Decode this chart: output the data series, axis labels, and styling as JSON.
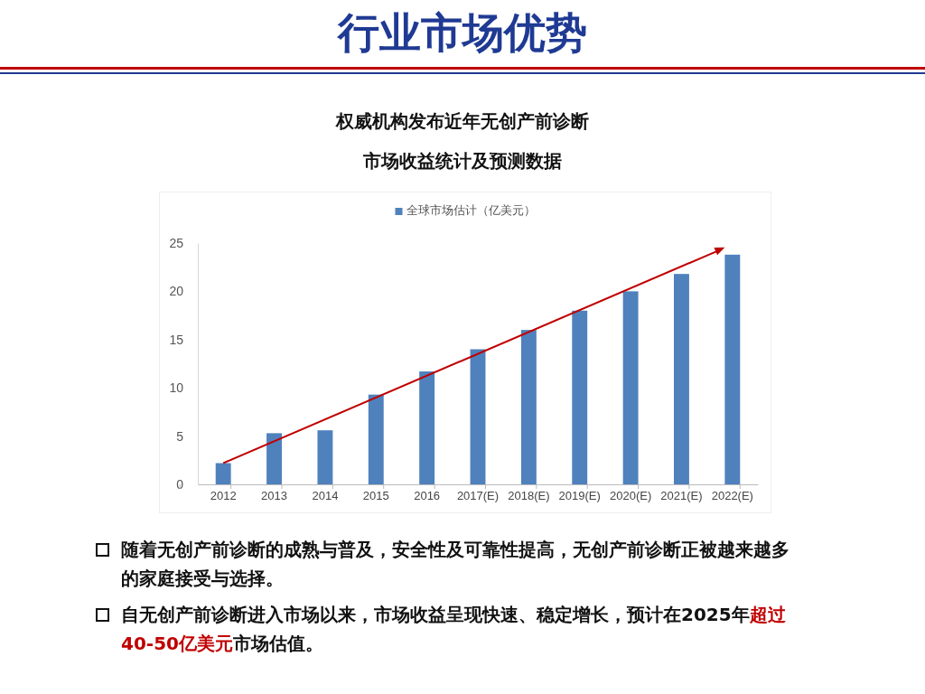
{
  "chart_data": {
    "type": "bar",
    "title": "行业市场优势",
    "subtitle": "权威机构发布近年无创产前诊断市场收益统计及预测数据",
    "categories": [
      "2012",
      "2013",
      "2014",
      "2015",
      "2016",
      "2017(E)",
      "2018(E)",
      "2019(E)",
      "2020(E)",
      "2021(E)",
      "2022(E)"
    ],
    "series": [
      {
        "name": "全球市场估计（亿美元）",
        "color": "#4f81bd",
        "values": [
          2.2,
          5.3,
          5.6,
          9.3,
          11.7,
          14,
          16,
          18,
          20,
          21.8,
          23.8
        ]
      }
    ],
    "ylim": [
      0,
      25
    ],
    "yticks": [
      0,
      5,
      10,
      15,
      20,
      25
    ],
    "grid": false,
    "legend": "top",
    "annotations": [
      "随着无创产前诊断的成熟与普及，安全性及可靠性提高，无创产前诊断正被越来越多的家庭接受与选择。",
      "自无创产前诊断进入市场以来，市场收益呈现快速、稳定增长，预计在2025年",
      "超过40-50亿美元",
      "市场估值。"
    ]
  }
}
